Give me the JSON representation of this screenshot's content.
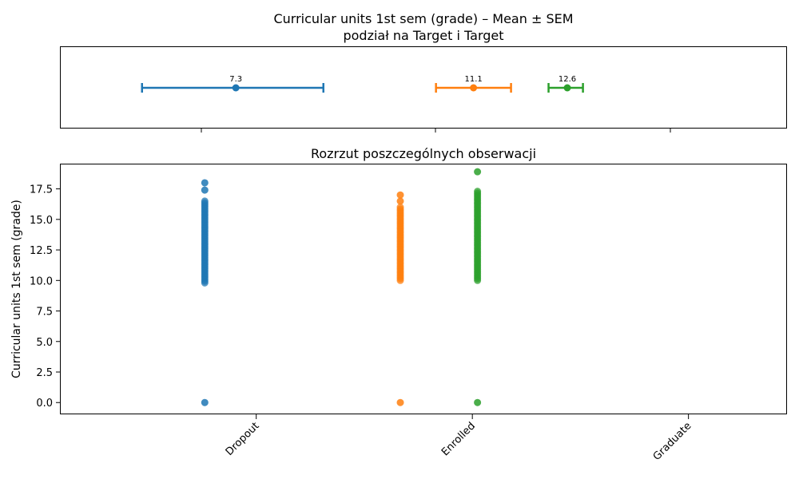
{
  "chart_data": [
    {
      "type": "errorbar",
      "title": "Curricular units 1st sem (grade) – Mean ± SEM",
      "subtitle": "podział na Target i Target",
      "categories": [
        "Dropout",
        "Enrolled",
        "Graduate"
      ],
      "series": [
        {
          "category": "Dropout",
          "mean": 7.3,
          "mean_label": "7.3",
          "err_low": 5.8,
          "err_high": 8.7,
          "color": "#1f77b4"
        },
        {
          "category": "Enrolled",
          "mean": 11.1,
          "mean_label": "11.1",
          "err_low": 10.5,
          "err_high": 11.7,
          "color": "#ff7f0e"
        },
        {
          "category": "Graduate",
          "mean": 12.6,
          "mean_label": "12.6",
          "err_low": 12.3,
          "err_high": 12.85,
          "color": "#2ca02c"
        }
      ],
      "value_axis": "x",
      "xlim": [
        4.5,
        16.1
      ],
      "grid": false
    },
    {
      "type": "scatter",
      "title": "Rozrzut poszczególnych obserwacji",
      "ylabel": "Curricular units 1st sem (grade)",
      "xlabel": "",
      "ylim": [
        -0.9,
        19.5
      ],
      "yticks": [
        "0.0",
        "2.5",
        "5.0",
        "7.5",
        "10.0",
        "12.5",
        "15.0",
        "17.5"
      ],
      "ytick_values": [
        0,
        2.5,
        5,
        7.5,
        10,
        12.5,
        15,
        17.5
      ],
      "xticks": [
        "Dropout",
        "Enrolled",
        "Graduate"
      ],
      "xtick_values": [
        8.3,
        12.5,
        16.7
      ],
      "xlim": [
        4.5,
        18.6
      ],
      "grid": false,
      "series": [
        {
          "name": "Dropout",
          "x": 7.3,
          "color": "#1f77b4",
          "range": [
            9.8,
            16.5
          ],
          "values": [
            0,
            17.4,
            18.0
          ]
        },
        {
          "name": "Enrolled",
          "x": 11.1,
          "color": "#ff7f0e",
          "range": [
            10.0,
            16.0
          ],
          "values": [
            0,
            16.5,
            17.0
          ]
        },
        {
          "name": "Graduate",
          "x": 12.6,
          "color": "#2ca02c",
          "range": [
            10.0,
            17.3
          ],
          "values": [
            0,
            18.9
          ]
        }
      ]
    }
  ]
}
